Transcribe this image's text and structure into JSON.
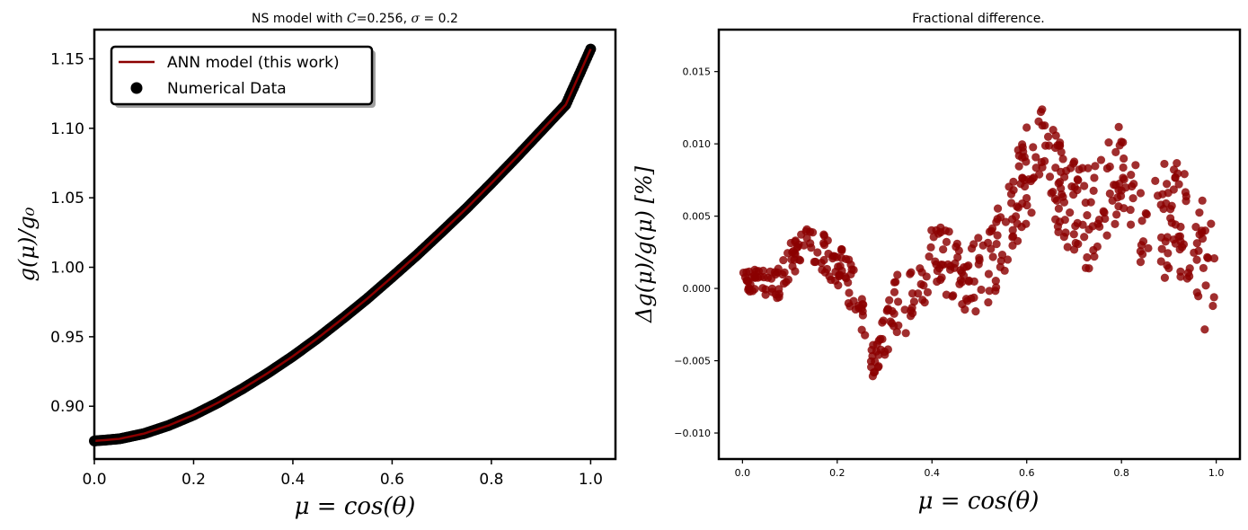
{
  "chart_data": [
    {
      "type": "line",
      "title": "NS model with C=0.256, σ = 0.2",
      "title_parts": [
        "NS model with ",
        "C",
        "=0.256, ",
        "σ",
        " = 0.2"
      ],
      "xlabel": "μ = cos(θ)",
      "ylabel": "g(μ)/g₀",
      "xlim": [
        0.0,
        1.05
      ],
      "ylim": [
        0.862,
        1.171
      ],
      "xticks": [
        0.0,
        0.2,
        0.4,
        0.6,
        0.8,
        1.0
      ],
      "xtick_labels": [
        "0.0",
        "0.2",
        "0.4",
        "0.6",
        "0.8",
        "1.0"
      ],
      "yticks": [
        0.9,
        0.95,
        1.0,
        1.05,
        1.1,
        1.15
      ],
      "ytick_labels": [
        "0.90",
        "0.95",
        "1.00",
        "1.05",
        "1.10",
        "1.15"
      ],
      "grid": false,
      "legend_position": "top-left",
      "series": [
        {
          "name": "ANN model (this work)",
          "kind": "line",
          "color": "#8b0000",
          "x": [
            0.0,
            0.05,
            0.1,
            0.15,
            0.2,
            0.25,
            0.3,
            0.35,
            0.4,
            0.45,
            0.5,
            0.55,
            0.6,
            0.65,
            0.7,
            0.75,
            0.8,
            0.85,
            0.9,
            0.95,
            1.0
          ],
          "y": [
            0.875,
            0.8765,
            0.8803,
            0.8862,
            0.8937,
            0.9027,
            0.9129,
            0.924,
            0.936,
            0.949,
            0.963,
            0.9775,
            0.993,
            1.0088,
            1.0255,
            1.0425,
            1.0605,
            1.079,
            1.098,
            1.117,
            1.157
          ]
        },
        {
          "name": "Numerical Data",
          "kind": "scatter",
          "color": "#000000",
          "x_range": [
            0.0,
            1.0
          ],
          "n_points": 400,
          "note": "dense points along the same curve"
        }
      ]
    },
    {
      "type": "scatter",
      "title": "Fractional difference.",
      "xlabel": "μ = cos(θ)",
      "ylabel": "Δg(μ)/g(μ) [%]",
      "xlim": [
        -0.05,
        1.05
      ],
      "ylim": [
        -0.0118,
        0.0179
      ],
      "xticks": [
        0.0,
        0.2,
        0.4,
        0.6,
        0.8,
        1.0
      ],
      "xtick_labels": [
        "0.0",
        "0.2",
        "0.4",
        "0.6",
        "0.8",
        "1.0"
      ],
      "yticks": [
        -0.01,
        -0.005,
        0.0,
        0.005,
        0.01,
        0.015
      ],
      "ytick_labels": [
        "−0.010",
        "−0.005",
        "0.000",
        "0.005",
        "0.010",
        "0.015"
      ],
      "grid": false,
      "color": "#8b0000",
      "trend_x": [
        0.0,
        0.04,
        0.08,
        0.12,
        0.16,
        0.2,
        0.24,
        0.28,
        0.32,
        0.36,
        0.4,
        0.44,
        0.48,
        0.52,
        0.56,
        0.6,
        0.64,
        0.68,
        0.72,
        0.76,
        0.8,
        0.84,
        0.88,
        0.92,
        0.96,
        1.0
      ],
      "trend_y": [
        0.0012,
        0.0002,
        0.0005,
        0.003,
        0.003,
        0.0015,
        0.0,
        -0.0055,
        -0.001,
        -0.001,
        0.002,
        0.002,
        0.0005,
        0.0015,
        0.0045,
        0.008,
        0.009,
        0.0065,
        0.0045,
        0.0065,
        0.008,
        0.0055,
        0.0045,
        0.005,
        0.003,
        -0.001
      ],
      "spread": [
        0.0012,
        0.001,
        0.0012,
        0.0014,
        0.0014,
        0.0016,
        0.0018,
        0.0014,
        0.002,
        0.0022,
        0.0024,
        0.0026,
        0.0026,
        0.0026,
        0.003,
        0.0036,
        0.0036,
        0.0034,
        0.0038,
        0.0034,
        0.0034,
        0.0038,
        0.004,
        0.004,
        0.0044,
        0.0048
      ],
      "n_points": 520
    }
  ]
}
